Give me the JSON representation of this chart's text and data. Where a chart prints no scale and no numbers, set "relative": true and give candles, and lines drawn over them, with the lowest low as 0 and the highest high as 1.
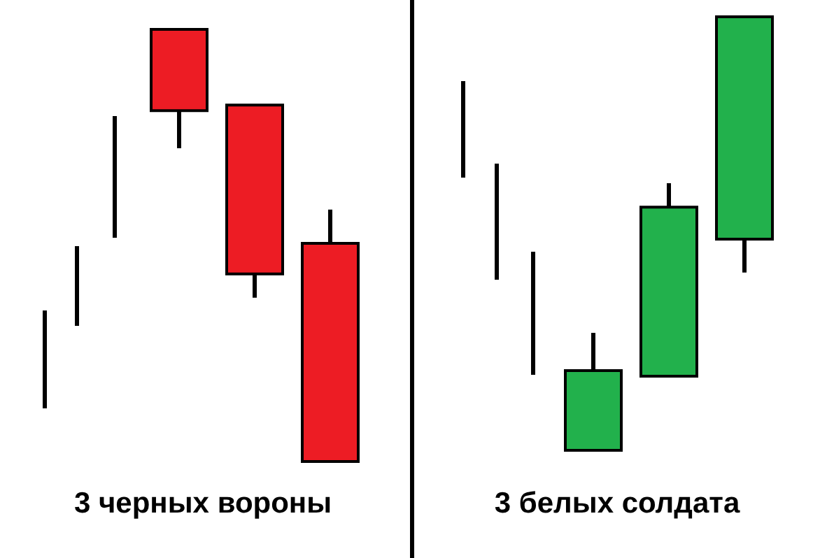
{
  "chart_data": [
    {
      "type": "candlestick",
      "title": "3 черных вороны",
      "relative": true,
      "categories": [
        null,
        null,
        null
      ],
      "ohlc": [
        [
          1,
          1,
          0.725,
          0.812
        ],
        [
          0.825,
          0.825,
          0.379,
          0.434
        ],
        [
          0.505,
          0.583,
          0,
          0
        ]
      ],
      "colors": [
        "#ed1c24",
        "#ed1c24",
        "#ed1c24"
      ]
    },
    {
      "type": "candlestick",
      "title": "3 белых солдата",
      "relative": true,
      "categories": [
        null,
        null,
        null
      ],
      "ohlc": [
        [
          0,
          0.271,
          0,
          0.184
        ],
        [
          0.171,
          0.616,
          0.171,
          0.561
        ],
        [
          0.487,
          1,
          0.41,
          1
        ]
      ],
      "colors": [
        "#22b14c",
        "#22b14c",
        "#22b14c"
      ]
    }
  ]
}
